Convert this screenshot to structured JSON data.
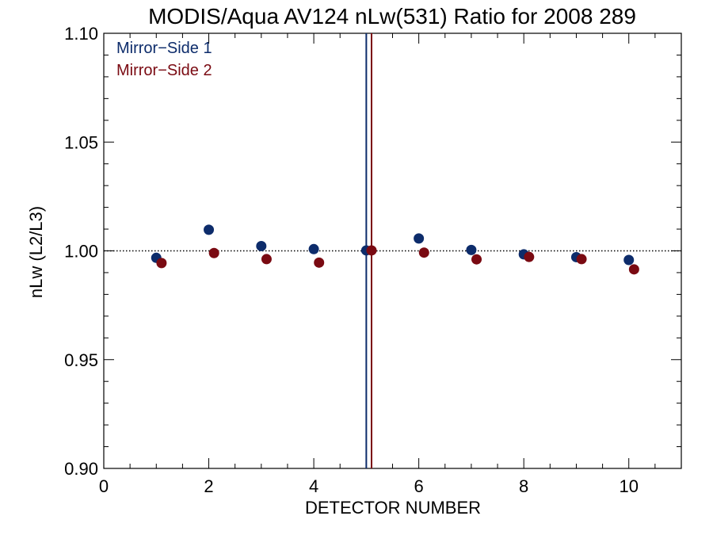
{
  "chart_data": {
    "type": "scatter",
    "title": "MODIS/Aqua AV124 nLw(531) Ratio for 2008 289",
    "xlabel": "DETECTOR NUMBER",
    "ylabel": "nLw (L2/L3)",
    "xlim": [
      0,
      11
    ],
    "ylim": [
      0.9,
      1.1
    ],
    "x_ticks": [
      0,
      2,
      4,
      6,
      8,
      10
    ],
    "x_tick_labels": [
      "0",
      "2",
      "4",
      "6",
      "8",
      "10"
    ],
    "y_ticks": [
      0.9,
      0.95,
      1.0,
      1.05,
      1.1
    ],
    "y_tick_labels": [
      "0.90",
      "0.95",
      "1.00",
      "1.05",
      "1.10"
    ],
    "reference_line": {
      "y": 1.0,
      "style": "dotted"
    },
    "vertical_lines": [
      {
        "x": 5.0,
        "color": "#0d2c6b"
      },
      {
        "x": 5.1,
        "color": "#7a0a12"
      }
    ],
    "legend_position": "top-left",
    "grid": false,
    "series": [
      {
        "name": "Mirror−Side 1",
        "color": "#0d2c6b",
        "x": [
          1,
          2,
          3,
          4,
          5,
          6,
          7,
          8,
          9,
          10
        ],
        "y": [
          0.9968,
          1.0097,
          1.0022,
          1.0008,
          1.0002,
          1.0057,
          1.0004,
          0.9984,
          0.9971,
          0.9958
        ]
      },
      {
        "name": "Mirror−Side 2",
        "color": "#7a0a12",
        "x": [
          1.1,
          2.1,
          3.1,
          4.1,
          5.1,
          6.1,
          7.1,
          8.1,
          9.1,
          10.1
        ],
        "y": [
          0.9944,
          0.999,
          0.9962,
          0.9946,
          1.0002,
          0.9992,
          0.9961,
          0.9972,
          0.9962,
          0.9915
        ]
      }
    ]
  }
}
